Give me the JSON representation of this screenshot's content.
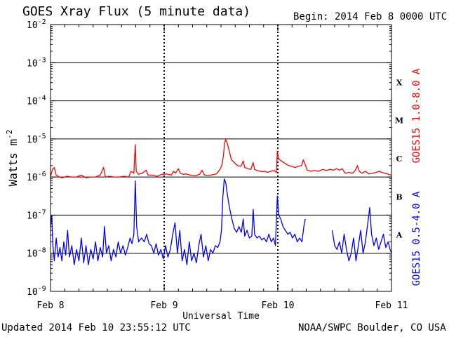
{
  "header": {
    "title": "GOES Xray Flux (5 minute data)",
    "begin": "Begin:  2014 Feb 8 0000 UTC"
  },
  "footer": {
    "updated": "Updated 2014 Feb 10 23:55:12 UTC",
    "credit": "NOAA/SWPC Boulder, CO USA"
  },
  "colors": {
    "long_channel": "#ff0000",
    "short_channel": "#0000ff",
    "axes": "#000000",
    "background": "#ffffff"
  },
  "chart_data": {
    "type": "line",
    "title": "GOES Xray Flux (5 minute data)",
    "xlabel": "Universal Time",
    "ylabel": "Watts m",
    "ylabel_superscript": "-2",
    "yscale": "log",
    "ylim_exponent": [
      -9,
      -2
    ],
    "xlim_hours": [
      0,
      72
    ],
    "x_ticks": [
      {
        "hour": 0,
        "label": "Feb 8"
      },
      {
        "hour": 24,
        "label": "Feb 9"
      },
      {
        "hour": 48,
        "label": "Feb 10"
      },
      {
        "hour": 72,
        "label": "Feb 11"
      }
    ],
    "y_ticks": [
      {
        "exp": -9,
        "label": "10",
        "sup": "-9"
      },
      {
        "exp": -8,
        "label": "10",
        "sup": "-8"
      },
      {
        "exp": -7,
        "label": "10",
        "sup": "-7"
      },
      {
        "exp": -6,
        "label": "10",
        "sup": "-6"
      },
      {
        "exp": -5,
        "label": "10",
        "sup": "-5"
      },
      {
        "exp": -4,
        "label": "10",
        "sup": "-4"
      },
      {
        "exp": -3,
        "label": "10",
        "sup": "-3"
      },
      {
        "exp": -2,
        "label": "10",
        "sup": "-2"
      }
    ],
    "gridlines_exp": [
      -8,
      -7,
      -6,
      -5,
      -4,
      -3
    ],
    "flare_classes": [
      {
        "label": "A",
        "exp": -7.5
      },
      {
        "label": "B",
        "exp": -6.5
      },
      {
        "label": "C",
        "exp": -5.5
      },
      {
        "label": "M",
        "exp": -4.5
      },
      {
        "label": "X",
        "exp": -3.5
      }
    ],
    "series": [
      {
        "name": "GOES15 1.0-8.0 A",
        "color": "#ff0000",
        "points": [
          [
            0.0,
            -6.0
          ],
          [
            0.4,
            -5.8
          ],
          [
            0.8,
            -5.75
          ],
          [
            1.2,
            -5.95
          ],
          [
            1.8,
            -6.0
          ],
          [
            2.5,
            -6.02
          ],
          [
            3.5,
            -5.98
          ],
          [
            4.5,
            -6.0
          ],
          [
            5.5,
            -6.0
          ],
          [
            6.5,
            -5.95
          ],
          [
            7.5,
            -6.02
          ],
          [
            8.5,
            -6.0
          ],
          [
            9.5,
            -6.0
          ],
          [
            10.5,
            -5.95
          ],
          [
            11.2,
            -5.75
          ],
          [
            11.6,
            -6.0
          ],
          [
            12.5,
            -5.98
          ],
          [
            13.5,
            -6.0
          ],
          [
            14.5,
            -6.0
          ],
          [
            15.5,
            -5.98
          ],
          [
            16.5,
            -6.0
          ],
          [
            17.0,
            -5.85
          ],
          [
            17.6,
            -5.9
          ],
          [
            17.9,
            -5.15
          ],
          [
            18.1,
            -5.85
          ],
          [
            18.6,
            -5.93
          ],
          [
            19.4,
            -5.9
          ],
          [
            20.2,
            -5.82
          ],
          [
            20.6,
            -5.95
          ],
          [
            21.5,
            -5.95
          ],
          [
            22.5,
            -5.98
          ],
          [
            23.5,
            -5.93
          ],
          [
            24.5,
            -5.92
          ],
          [
            25.5,
            -5.95
          ],
          [
            26.0,
            -5.85
          ],
          [
            26.4,
            -5.9
          ],
          [
            27.0,
            -5.78
          ],
          [
            27.4,
            -5.9
          ],
          [
            28.0,
            -5.93
          ],
          [
            28.6,
            -5.92
          ],
          [
            29.5,
            -5.95
          ],
          [
            30.5,
            -5.97
          ],
          [
            31.5,
            -5.93
          ],
          [
            32.0,
            -5.82
          ],
          [
            32.5,
            -5.95
          ],
          [
            33.5,
            -5.96
          ],
          [
            34.2,
            -5.94
          ],
          [
            35.0,
            -5.92
          ],
          [
            35.8,
            -5.8
          ],
          [
            36.2,
            -5.68
          ],
          [
            36.5,
            -5.45
          ],
          [
            36.8,
            -5.08
          ],
          [
            37.0,
            -5.02
          ],
          [
            37.3,
            -5.1
          ],
          [
            37.7,
            -5.3
          ],
          [
            38.2,
            -5.55
          ],
          [
            38.8,
            -5.62
          ],
          [
            39.5,
            -5.7
          ],
          [
            40.2,
            -5.72
          ],
          [
            40.7,
            -5.58
          ],
          [
            41.0,
            -5.75
          ],
          [
            41.6,
            -5.78
          ],
          [
            42.3,
            -5.8
          ],
          [
            42.8,
            -5.62
          ],
          [
            43.1,
            -5.8
          ],
          [
            43.6,
            -5.83
          ],
          [
            44.3,
            -5.85
          ],
          [
            44.8,
            -5.86
          ],
          [
            45.3,
            -5.85
          ],
          [
            45.8,
            -5.88
          ],
          [
            46.5,
            -5.85
          ],
          [
            47.2,
            -5.83
          ],
          [
            47.7,
            -5.88
          ],
          [
            47.9,
            -5.32
          ],
          [
            48.1,
            -5.5
          ],
          [
            48.4,
            -5.55
          ],
          [
            49.0,
            -5.6
          ],
          [
            49.6,
            -5.65
          ],
          [
            50.3,
            -5.7
          ],
          [
            51.0,
            -5.72
          ],
          [
            51.6,
            -5.75
          ],
          [
            52.3,
            -5.72
          ],
          [
            53.0,
            -5.7
          ],
          [
            53.4,
            -5.55
          ],
          [
            53.7,
            -5.65
          ],
          [
            54.2,
            -5.82
          ],
          [
            55.0,
            -5.85
          ],
          [
            55.8,
            -5.83
          ],
          [
            56.6,
            -5.85
          ],
          [
            57.5,
            -5.8
          ],
          [
            58.3,
            -5.83
          ],
          [
            59.0,
            -5.8
          ],
          [
            59.8,
            -5.82
          ],
          [
            60.4,
            -5.78
          ],
          [
            61.0,
            -5.82
          ],
          [
            61.6,
            -5.78
          ],
          [
            62.2,
            -5.9
          ],
          [
            63.0,
            -5.88
          ],
          [
            63.8,
            -5.9
          ],
          [
            64.4,
            -5.82
          ],
          [
            64.8,
            -5.7
          ],
          [
            65.2,
            -5.85
          ],
          [
            65.8,
            -5.9
          ],
          [
            66.5,
            -5.85
          ],
          [
            67.2,
            -5.92
          ],
          [
            68.0,
            -5.9
          ],
          [
            68.8,
            -5.88
          ],
          [
            69.4,
            -5.85
          ],
          [
            70.0,
            -5.88
          ],
          [
            70.6,
            -5.9
          ],
          [
            71.2,
            -5.92
          ],
          [
            71.6,
            -5.94
          ],
          [
            72.0,
            -5.95
          ]
        ]
      },
      {
        "name": "GOES15 0.5-4.0 A",
        "color": "#0000ff",
        "points": [
          [
            0.0,
            -7.3
          ],
          [
            0.25,
            -7.0
          ],
          [
            0.5,
            -7.8
          ],
          [
            0.8,
            -8.2
          ],
          [
            1.2,
            -7.6
          ],
          [
            1.6,
            -8.1
          ],
          [
            2.0,
            -7.85
          ],
          [
            2.4,
            -8.2
          ],
          [
            2.8,
            -7.7
          ],
          [
            3.2,
            -8.05
          ],
          [
            3.6,
            -7.4
          ],
          [
            4.0,
            -8.1
          ],
          [
            4.5,
            -7.8
          ],
          [
            5.0,
            -8.3
          ],
          [
            5.5,
            -7.9
          ],
          [
            6.0,
            -8.2
          ],
          [
            6.5,
            -7.6
          ],
          [
            7.0,
            -8.25
          ],
          [
            7.5,
            -7.8
          ],
          [
            8.0,
            -8.3
          ],
          [
            8.5,
            -7.9
          ],
          [
            9.0,
            -8.15
          ],
          [
            9.5,
            -7.7
          ],
          [
            10.0,
            -8.2
          ],
          [
            10.5,
            -7.85
          ],
          [
            11.0,
            -8.1
          ],
          [
            11.4,
            -7.3
          ],
          [
            11.8,
            -8.0
          ],
          [
            12.3,
            -7.8
          ],
          [
            12.8,
            -8.2
          ],
          [
            13.3,
            -7.9
          ],
          [
            13.8,
            -8.1
          ],
          [
            14.3,
            -7.7
          ],
          [
            14.8,
            -8.0
          ],
          [
            15.3,
            -7.8
          ],
          [
            15.8,
            -8.05
          ],
          [
            16.3,
            -7.85
          ],
          [
            16.8,
            -7.6
          ],
          [
            17.2,
            -7.75
          ],
          [
            17.6,
            -7.5
          ],
          [
            17.9,
            -6.1
          ],
          [
            18.2,
            -7.3
          ],
          [
            18.6,
            -7.7
          ],
          [
            19.2,
            -7.6
          ],
          [
            19.8,
            -7.7
          ],
          [
            20.3,
            -7.5
          ],
          [
            20.8,
            -7.75
          ],
          [
            21.3,
            -7.8
          ],
          [
            21.8,
            -8.0
          ],
          [
            22.3,
            -7.75
          ],
          [
            22.8,
            -8.05
          ],
          [
            23.3,
            -7.9
          ],
          [
            23.8,
            -8.15
          ],
          [
            24.3,
            -7.8
          ],
          [
            24.8,
            -8.1
          ],
          [
            25.3,
            -7.9
          ],
          [
            25.8,
            -7.5
          ],
          [
            26.3,
            -7.2
          ],
          [
            26.8,
            -8.0
          ],
          [
            27.3,
            -7.4
          ],
          [
            27.8,
            -8.2
          ],
          [
            28.3,
            -7.9
          ],
          [
            28.8,
            -8.3
          ],
          [
            29.3,
            -7.7
          ],
          [
            29.8,
            -8.2
          ],
          [
            30.3,
            -8.0
          ],
          [
            30.8,
            -8.25
          ],
          [
            31.3,
            -7.8
          ],
          [
            31.8,
            -7.5
          ],
          [
            32.3,
            -8.1
          ],
          [
            32.8,
            -7.8
          ],
          [
            33.3,
            -8.2
          ],
          [
            33.8,
            -7.9
          ],
          [
            34.3,
            -8.0
          ],
          [
            34.8,
            -7.8
          ],
          [
            35.3,
            -7.85
          ],
          [
            35.8,
            -7.7
          ],
          [
            36.1,
            -7.4
          ],
          [
            36.4,
            -6.5
          ],
          [
            36.7,
            -6.05
          ],
          [
            37.0,
            -6.15
          ],
          [
            37.4,
            -6.5
          ],
          [
            37.8,
            -6.8
          ],
          [
            38.3,
            -7.1
          ],
          [
            38.8,
            -7.35
          ],
          [
            39.3,
            -7.45
          ],
          [
            39.8,
            -7.3
          ],
          [
            40.3,
            -7.45
          ],
          [
            40.7,
            -7.1
          ],
          [
            41.0,
            -7.55
          ],
          [
            41.5,
            -7.4
          ],
          [
            42.0,
            -7.6
          ],
          [
            42.5,
            -7.55
          ],
          [
            42.8,
            -6.85
          ],
          [
            43.1,
            -7.5
          ],
          [
            43.6,
            -7.6
          ],
          [
            44.1,
            -7.55
          ],
          [
            44.6,
            -7.65
          ],
          [
            45.1,
            -7.6
          ],
          [
            45.6,
            -7.7
          ],
          [
            46.1,
            -7.5
          ],
          [
            46.6,
            -7.7
          ],
          [
            47.1,
            -7.6
          ],
          [
            47.5,
            -7.8
          ],
          [
            47.9,
            -6.5
          ],
          [
            48.2,
            -7.0
          ],
          [
            48.6,
            -7.1
          ],
          [
            49.1,
            -7.3
          ],
          [
            49.6,
            -7.4
          ],
          [
            50.1,
            -7.5
          ],
          [
            50.6,
            -7.45
          ],
          [
            51.1,
            -7.6
          ],
          [
            51.6,
            -7.5
          ],
          [
            52.1,
            -7.7
          ],
          [
            52.6,
            -7.6
          ],
          [
            53.1,
            -7.7
          ],
          [
            53.5,
            -7.3
          ],
          [
            53.8,
            -7.1
          ],
          [
            59.5,
            -7.4
          ],
          [
            60.0,
            -7.8
          ],
          [
            60.5,
            -7.9
          ],
          [
            61.0,
            -7.7
          ],
          [
            61.5,
            -8.0
          ],
          [
            62.0,
            -7.5
          ],
          [
            62.5,
            -7.9
          ],
          [
            63.0,
            -8.2
          ],
          [
            63.5,
            -8.0
          ],
          [
            64.0,
            -7.6
          ],
          [
            64.5,
            -8.2
          ],
          [
            65.0,
            -7.8
          ],
          [
            65.5,
            -7.4
          ],
          [
            66.0,
            -8.0
          ],
          [
            66.5,
            -7.7
          ],
          [
            67.0,
            -7.2
          ],
          [
            67.4,
            -6.8
          ],
          [
            67.8,
            -7.5
          ],
          [
            68.3,
            -7.8
          ],
          [
            68.8,
            -7.6
          ],
          [
            69.3,
            -7.9
          ],
          [
            69.8,
            -7.7
          ],
          [
            70.3,
            -7.5
          ],
          [
            70.8,
            -7.85
          ],
          [
            71.3,
            -7.7
          ],
          [
            71.7,
            -7.9
          ],
          [
            72.0,
            -8.0
          ]
        ]
      }
    ]
  }
}
